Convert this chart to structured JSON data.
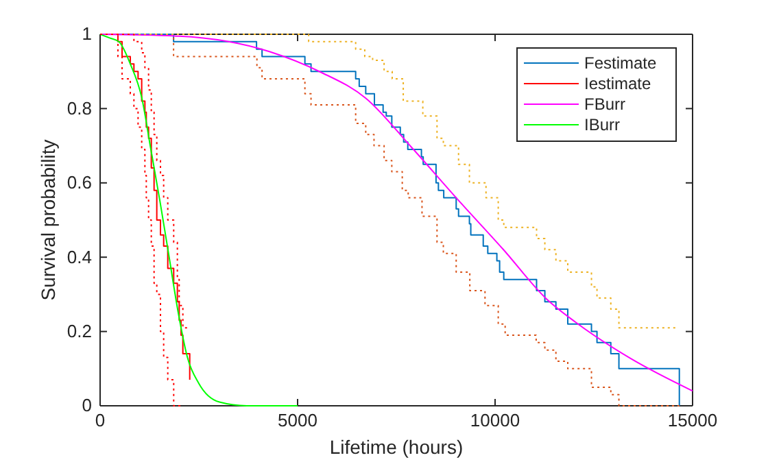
{
  "chart_data": {
    "type": "line",
    "xlabel": "Lifetime (hours)",
    "ylabel": "Survival probability",
    "xlim": [
      0,
      15000
    ],
    "ylim": [
      0,
      1
    ],
    "xticks": [
      0,
      5000,
      10000,
      15000
    ],
    "yticks": [
      0,
      0.2,
      0.4,
      0.6,
      0.8,
      1
    ],
    "grid": false,
    "legend": "top right",
    "series": [
      {
        "name": "Festimate",
        "type": "step",
        "color": "#0072bd",
        "line_style": "solid",
        "x": [
          0,
          1860,
          3960,
          4100,
          5185,
          5340,
          6470,
          6560,
          6725,
          6945,
          7165,
          7245,
          7385,
          7600,
          7685,
          7790,
          8135,
          8180,
          8505,
          8565,
          8700,
          9015,
          9075,
          9350,
          9385,
          9700,
          9815,
          10045,
          10115,
          10220,
          11050,
          11260,
          11540,
          11840,
          12440,
          12580,
          12930,
          13135,
          14665
        ],
        "values": [
          1,
          0.98,
          0.96,
          0.94,
          0.92,
          0.9,
          0.88,
          0.86,
          0.84,
          0.81,
          0.79,
          0.78,
          0.75,
          0.73,
          0.71,
          0.69,
          0.67,
          0.65,
          0.6,
          0.58,
          0.56,
          0.53,
          0.51,
          0.49,
          0.46,
          0.43,
          0.41,
          0.39,
          0.36,
          0.34,
          0.31,
          0.28,
          0.26,
          0.22,
          0.2,
          0.17,
          0.14,
          0.1,
          0
        ]
      },
      {
        "name": "Iestimate",
        "type": "step",
        "color": "#ff0000",
        "line_style": "solid",
        "x": [
          0,
          451,
          556,
          764,
          856,
          961,
          1053,
          1134,
          1169,
          1227,
          1296,
          1366,
          1435,
          1528,
          1609,
          1713,
          1863,
          1956,
          2002,
          2049,
          2095,
          2269
        ],
        "values": [
          1,
          0.98,
          0.94,
          0.92,
          0.9,
          0.88,
          0.82,
          0.79,
          0.75,
          0.72,
          0.64,
          0.58,
          0.5,
          0.46,
          0.43,
          0.37,
          0.33,
          0.28,
          0.23,
          0.19,
          0.14,
          0.07
        ]
      },
      {
        "name": "FBurr",
        "color": "#ff00ff",
        "line_style": "solid",
        "x": [
          0,
          2000,
          4300,
          5567,
          6725,
          7882,
          9040,
          10197,
          11308,
          12037,
          13437,
          15000
        ],
        "values": [
          1,
          0.995,
          0.953,
          0.899,
          0.828,
          0.696,
          0.557,
          0.422,
          0.287,
          0.225,
          0.127,
          0.04
        ]
      },
      {
        "name": "IBurr",
        "color": "#00ff00",
        "line_style": "solid",
        "x": [
          0,
          243,
          475,
          764,
          1053,
          1285,
          1516,
          1748,
          1979,
          2211,
          2500,
          3021,
          3715,
          5000
        ],
        "values": [
          1,
          0.99,
          0.98,
          0.92,
          0.83,
          0.69,
          0.55,
          0.4,
          0.25,
          0.13,
          0.06,
          0.01,
          0,
          0
        ]
      },
      {
        "type": "step",
        "color": "#d95319",
        "line_style": "dotted",
        "x": [
          0,
          1860,
          3970,
          4100,
          5185,
          5340,
          6470,
          6725,
          6935,
          7190,
          7385,
          7650,
          7800,
          8150,
          8530,
          8690,
          9015,
          9360,
          9745,
          10080,
          10255,
          11040,
          11260,
          11540,
          11840,
          12440,
          12930,
          13135,
          14665
        ],
        "values": [
          1,
          0.94,
          0.91,
          0.88,
          0.84,
          0.81,
          0.76,
          0.73,
          0.7,
          0.66,
          0.63,
          0.58,
          0.56,
          0.51,
          0.44,
          0.41,
          0.36,
          0.31,
          0.27,
          0.22,
          0.19,
          0.17,
          0.15,
          0.12,
          0.1,
          0.05,
          0.03,
          0,
          0
        ]
      },
      {
        "type": "step",
        "color": "#edb120",
        "line_style": "dotted",
        "x": [
          0,
          5280,
          6470,
          6700,
          6900,
          7190,
          7395,
          7675,
          8170,
          8530,
          8690,
          9075,
          9350,
          9770,
          10080,
          10220,
          11050,
          11260,
          11540,
          11840,
          12440,
          12580,
          12930,
          13135,
          14600
        ],
        "values": [
          1,
          0.98,
          0.96,
          0.94,
          0.93,
          0.9,
          0.88,
          0.82,
          0.78,
          0.72,
          0.7,
          0.65,
          0.6,
          0.56,
          0.5,
          0.48,
          0.45,
          0.42,
          0.39,
          0.36,
          0.32,
          0.29,
          0.26,
          0.21,
          0.21
        ]
      },
      {
        "type": "step",
        "color": "#ff0000",
        "line_style": "dotted",
        "x": [
          0,
          856,
          1053,
          1134,
          1227,
          1296,
          1366,
          1435,
          1528,
          1609,
          1713,
          1863,
          1956,
          2002,
          2095,
          2269
        ],
        "values": [
          1,
          0.98,
          0.95,
          0.91,
          0.85,
          0.79,
          0.73,
          0.66,
          0.62,
          0.56,
          0.5,
          0.44,
          0.34,
          0.27,
          0.21,
          0.21
        ]
      },
      {
        "type": "step",
        "color": "#ff0000",
        "line_style": "dotted",
        "x": [
          0,
          451,
          556,
          764,
          856,
          961,
          1053,
          1134,
          1169,
          1227,
          1296,
          1366,
          1435,
          1528,
          1609,
          1713,
          1863,
          2049
        ],
        "values": [
          1,
          0.94,
          0.88,
          0.84,
          0.8,
          0.75,
          0.69,
          0.62,
          0.56,
          0.5,
          0.43,
          0.33,
          0.3,
          0.2,
          0.13,
          0.07,
          0,
          0
        ]
      }
    ]
  }
}
